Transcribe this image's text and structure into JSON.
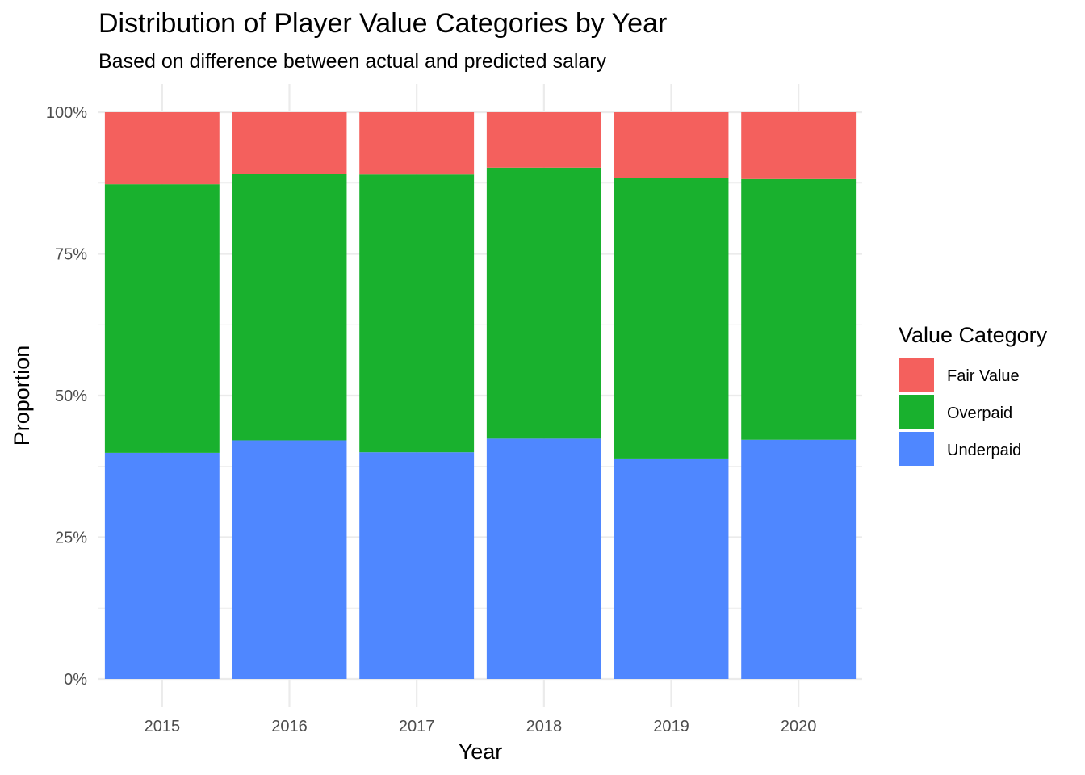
{
  "chart_data": {
    "type": "bar",
    "stacked": true,
    "title": "Distribution of Player Value Categories by Year",
    "subtitle": "Based on difference between actual and predicted salary",
    "xlabel": "Year",
    "ylabel": "Proportion",
    "ylim": [
      0,
      1
    ],
    "y_ticks": [
      {
        "value": 0,
        "label": "0%"
      },
      {
        "value": 0.25,
        "label": "25%"
      },
      {
        "value": 0.5,
        "label": "50%"
      },
      {
        "value": 0.75,
        "label": "75%"
      },
      {
        "value": 1,
        "label": "100%"
      }
    ],
    "categories": [
      "2015",
      "2016",
      "2017",
      "2018",
      "2019",
      "2020"
    ],
    "series": [
      {
        "name": "Underpaid",
        "color": "#4f87ff",
        "values": [
          0.399,
          0.421,
          0.4,
          0.424,
          0.389,
          0.422
        ]
      },
      {
        "name": "Overpaid",
        "color": "#19b12e",
        "values": [
          0.474,
          0.47,
          0.49,
          0.478,
          0.495,
          0.46
        ]
      },
      {
        "name": "Fair Value",
        "color": "#f4605d",
        "values": [
          0.127,
          0.109,
          0.11,
          0.098,
          0.116,
          0.118
        ]
      }
    ],
    "legend": {
      "title": "Value Category",
      "position": "right",
      "order": [
        "Fair Value",
        "Overpaid",
        "Underpaid"
      ]
    },
    "grid": true
  }
}
